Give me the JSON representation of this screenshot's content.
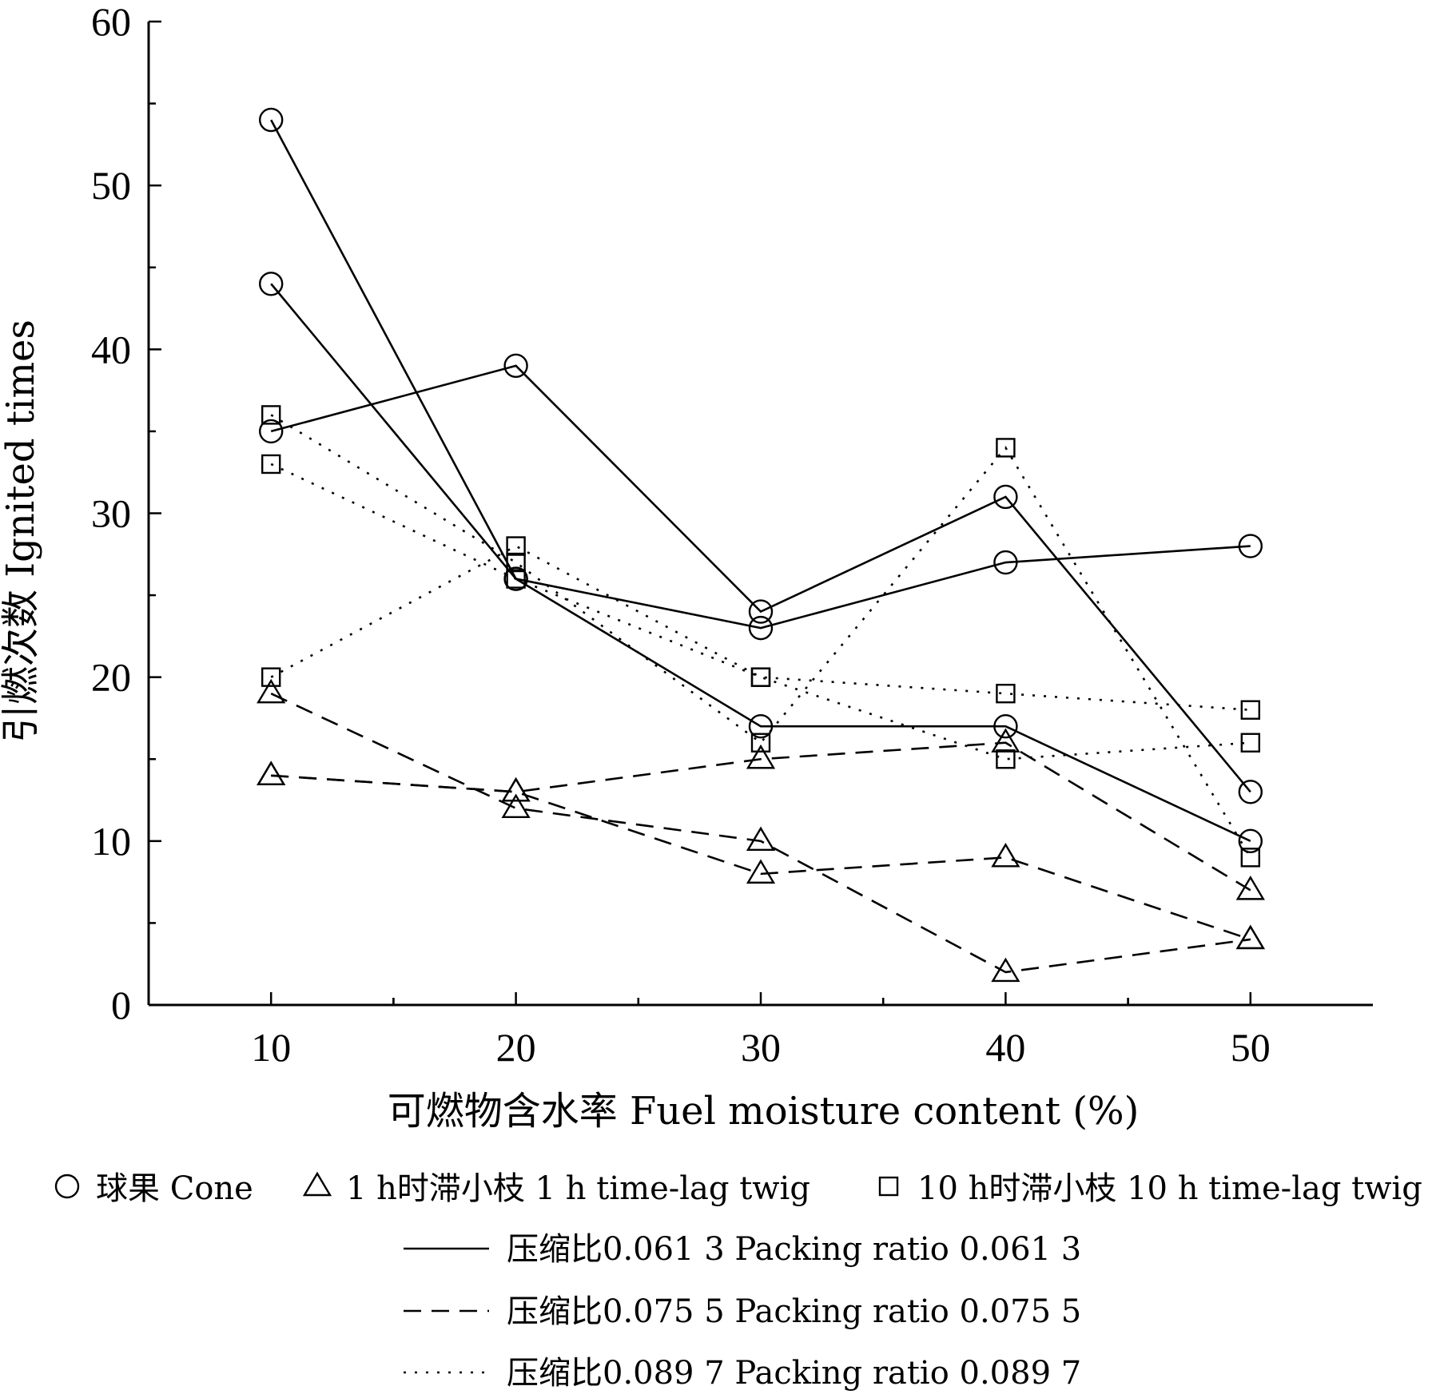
{
  "chart_data": {
    "type": "line",
    "title": "",
    "xlabel": "可燃物含水率  Fuel moisture content (%)",
    "ylabel": "引燃次数  Ignited times",
    "x": [
      10,
      20,
      30,
      40,
      50
    ],
    "x_ticks": [
      "10",
      "20",
      "30",
      "40",
      "50"
    ],
    "xlim": [
      5,
      55
    ],
    "ylim": [
      0,
      60
    ],
    "y_ticks": [
      "0",
      "10",
      "20",
      "30",
      "40",
      "50",
      "60"
    ],
    "grid": false,
    "legend_position": "bottom",
    "legend_markers": [
      {
        "fuel": "cone",
        "label": "球果 Cone"
      },
      {
        "fuel": "1h_twig",
        "label": "1 h时滞小枝   1 h time-lag twig"
      },
      {
        "fuel": "10h_twig",
        "label": "10 h时滞小枝   10 h time-lag twig"
      }
    ],
    "legend_lines": [
      {
        "ratio": "0.0613",
        "dash": "solid",
        "label": "压缩比0.061 3   Packing ratio 0.061 3"
      },
      {
        "ratio": "0.0755",
        "dash": "dashed",
        "label": "压缩比0.075 5   Packing ratio 0.075 5"
      },
      {
        "ratio": "0.0897",
        "dash": "dotted",
        "label": "压缩比0.089 7   Packing ratio 0.089 7"
      }
    ],
    "series": [
      {
        "fuel": "cone",
        "ratio": "0.0613",
        "dash": "solid",
        "values": [
          54,
          26,
          23,
          27,
          28
        ]
      },
      {
        "fuel": "cone",
        "ratio": "0.0613",
        "dash": "solid",
        "values": [
          44,
          26,
          17,
          17,
          10
        ]
      },
      {
        "fuel": "cone",
        "ratio": "0.0613",
        "dash": "solid",
        "values": [
          35,
          39,
          24,
          31,
          13
        ]
      },
      {
        "fuel": "1h_twig",
        "ratio": "0.0755",
        "dash": "dashed",
        "values": [
          19,
          12,
          10,
          2,
          4
        ]
      },
      {
        "fuel": "1h_twig",
        "ratio": "0.0755",
        "dash": "dashed",
        "values": [
          14,
          13,
          8,
          9,
          4
        ]
      },
      {
        "fuel": "1h_twig",
        "ratio": "0.0755",
        "dash": "dashed",
        "values": [
          14,
          13,
          15,
          16,
          7
        ]
      },
      {
        "fuel": "10h_twig",
        "ratio": "0.0897",
        "dash": "dotted",
        "values": [
          36,
          27,
          16,
          34,
          9
        ]
      },
      {
        "fuel": "10h_twig",
        "ratio": "0.0897",
        "dash": "dotted",
        "values": [
          33,
          26,
          20,
          15,
          16
        ]
      },
      {
        "fuel": "10h_twig",
        "ratio": "0.0897",
        "dash": "dotted",
        "values": [
          20,
          28,
          20,
          19,
          18
        ]
      }
    ]
  }
}
